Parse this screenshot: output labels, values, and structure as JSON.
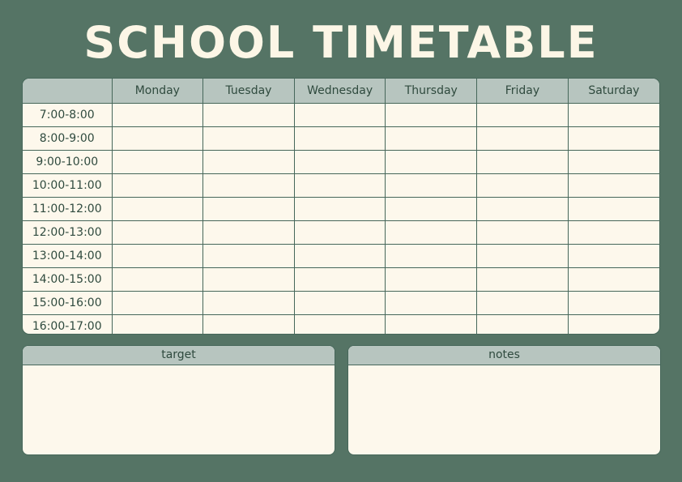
{
  "title": "SCHOOL TIMETABLE",
  "timetable": {
    "corner": "",
    "days": [
      "Monday",
      "Tuesday",
      "Wednesday",
      "Thursday",
      "Friday",
      "Saturday"
    ],
    "times": [
      "7:00-8:00",
      "8:00-9:00",
      "9:00-10:00",
      "10:00-11:00",
      "11:00-12:00",
      "12:00-13:00",
      "13:00-14:00",
      "14:00-15:00",
      "15:00-16:00",
      "16:00-17:00"
    ]
  },
  "target": {
    "label": "target"
  },
  "notes": {
    "label": "notes"
  },
  "colors": {
    "background": "#557465",
    "header": "#b7c5bf",
    "cell": "#fdf8ec",
    "line": "#46675a",
    "text": "#2f4a3e"
  }
}
